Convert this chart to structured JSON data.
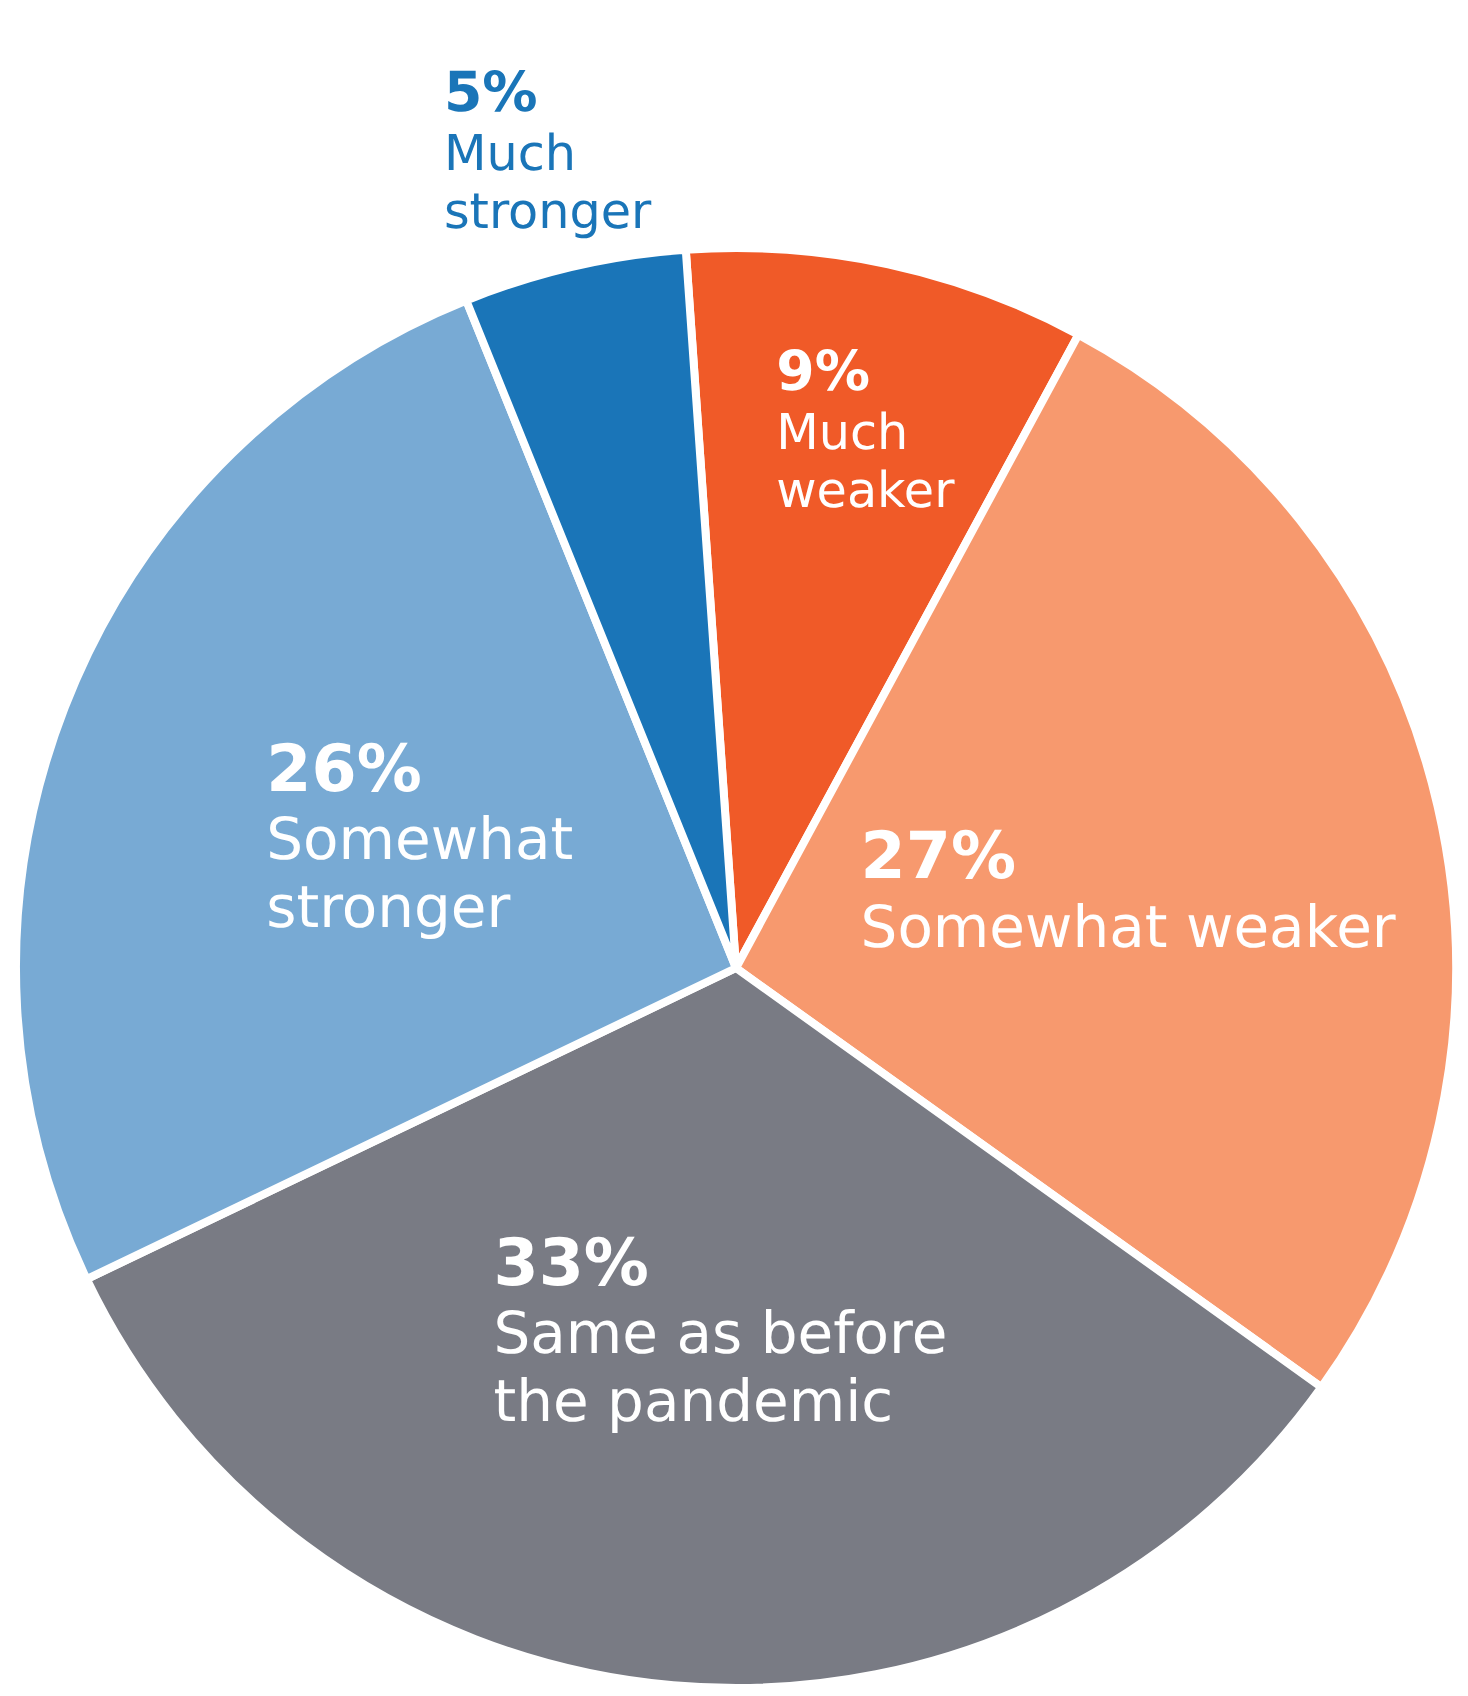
{
  "chart_data": {
    "type": "pie",
    "categories": [
      "Much weaker",
      "Somewhat weaker",
      "Same as before the pandemic",
      "Somewhat stronger",
      "Much stronger"
    ],
    "values": [
      9,
      27,
      33,
      26,
      5
    ],
    "value_labels": [
      "9%",
      "27%",
      "33%",
      "26%",
      "5%"
    ],
    "colors": [
      "#f05a28",
      "#f7996e",
      "#797b84",
      "#78aad4",
      "#1a75b8"
    ]
  }
}
